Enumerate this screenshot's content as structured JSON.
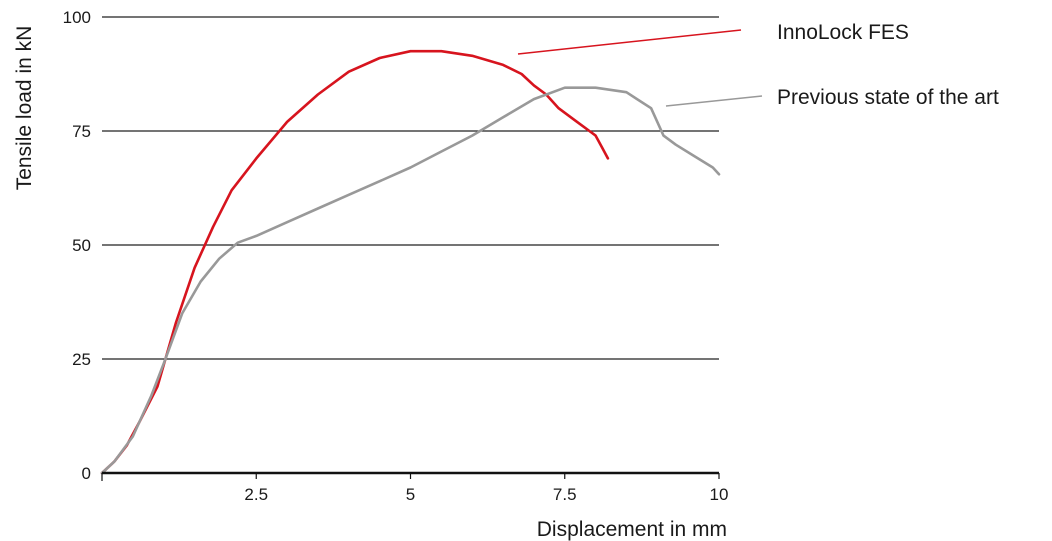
{
  "chart_data": {
    "type": "line",
    "title": "",
    "xlabel": "Displacement in mm",
    "ylabel": "Tensile load in kN",
    "xlim": [
      0,
      10
    ],
    "ylim": [
      0,
      100
    ],
    "x_ticks": [
      2.5,
      5,
      7.5,
      10
    ],
    "x_tick_labels": [
      "2.5",
      "5",
      "7.5",
      "10"
    ],
    "y_ticks": [
      0,
      25,
      50,
      75,
      100
    ],
    "y_tick_labels": [
      "0",
      "25",
      "50",
      "75",
      "100"
    ],
    "grid": "horizontal",
    "legend": "right",
    "series": [
      {
        "name": "InnoLock FES",
        "color": "#d7141e",
        "x": [
          0,
          0.2,
          0.4,
          0.6,
          0.9,
          1.2,
          1.5,
          1.8,
          2.1,
          2.5,
          3.0,
          3.5,
          4.0,
          4.5,
          5.0,
          5.5,
          6.0,
          6.5,
          6.8,
          7.0,
          7.2,
          7.4,
          7.5,
          7.7,
          7.9,
          8.0,
          8.1,
          8.2
        ],
        "y": [
          0,
          2.5,
          6,
          11,
          19,
          33,
          45,
          54,
          62,
          69,
          77,
          83,
          88,
          91,
          92.5,
          92.5,
          91.5,
          89.5,
          87.5,
          85,
          83,
          80,
          79,
          77,
          75,
          74,
          71.5,
          69
        ]
      },
      {
        "name": "Previous state of the art",
        "color": "#999999",
        "x": [
          0,
          0.2,
          0.5,
          0.8,
          1.0,
          1.3,
          1.6,
          1.9,
          2.2,
          2.5,
          3.0,
          3.5,
          4.0,
          4.5,
          5.0,
          5.5,
          6.0,
          6.5,
          7.0,
          7.5,
          8.0,
          8.5,
          8.9,
          9.1,
          9.3,
          9.6,
          9.9,
          10.0
        ],
        "y": [
          0,
          2.5,
          8,
          17,
          24,
          35,
          42,
          47,
          50.5,
          52,
          55,
          58,
          61,
          64,
          67,
          70.5,
          74,
          78,
          82,
          84.5,
          84.5,
          83.5,
          80,
          74,
          72,
          69.5,
          67,
          65.5
        ]
      }
    ]
  },
  "colors": {
    "innolock": "#d7141e",
    "previous": "#999999",
    "grid": "#222222",
    "axis": "#111111"
  }
}
